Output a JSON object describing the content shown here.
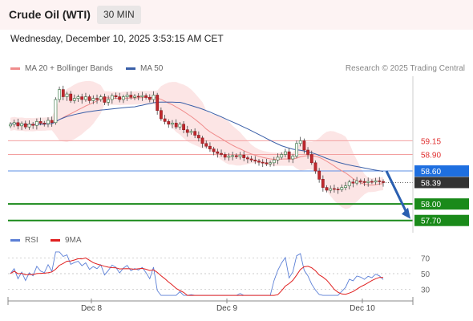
{
  "header": {
    "title": "Crude Oil (WTI)",
    "timeframe": "30 MIN",
    "datetime": "Wednesday, December 10, 2025 3:53:15 AM CET"
  },
  "legend": {
    "bollinger": {
      "label": "MA 20 + Bollinger Bands",
      "color": "#f08c8c"
    },
    "ma50": {
      "label": "MA 50",
      "color": "#3a5fa8"
    },
    "credit": "Research © 2025 Trading Central"
  },
  "rsi_legend": {
    "rsi": {
      "label": "RSI",
      "color": "#5b7fd6"
    },
    "ma9": {
      "label": "9MA",
      "color": "#e02020"
    }
  },
  "chart_data": [
    {
      "type": "candlestick",
      "title": "Crude Oil (WTI)",
      "timeframe": "30 MIN",
      "x_ticks": [
        "Dec 8",
        "Dec 9",
        "Dec 10"
      ],
      "ylim": [
        57.55,
        60.25
      ],
      "closes": [
        59.45,
        59.48,
        59.42,
        59.46,
        59.4,
        59.45,
        59.43,
        59.5,
        59.47,
        59.46,
        59.52,
        59.48,
        59.9,
        60.08,
        59.95,
        60.0,
        59.88,
        59.92,
        59.95,
        59.9,
        59.95,
        59.88,
        59.92,
        59.9,
        59.95,
        59.85,
        59.9,
        59.97,
        59.95,
        59.9,
        59.95,
        59.98,
        59.94,
        59.96,
        59.95,
        59.97,
        59.94,
        59.9,
        59.98,
        59.7,
        59.55,
        59.5,
        59.45,
        59.47,
        59.4,
        59.45,
        59.35,
        59.3,
        59.32,
        59.25,
        59.2,
        59.1,
        59.05,
        59.0,
        58.95,
        58.92,
        58.9,
        58.85,
        58.87,
        58.88,
        58.86,
        58.89,
        58.84,
        58.82,
        58.8,
        58.78,
        58.76,
        58.75,
        58.73,
        58.75,
        58.8,
        58.85,
        58.9,
        58.95,
        58.82,
        58.87,
        59.1,
        59.15,
        58.98,
        58.9,
        58.75,
        58.6,
        58.45,
        58.3,
        58.25,
        58.28,
        58.27,
        58.26,
        58.3,
        58.33,
        58.4,
        58.38,
        58.42,
        58.41,
        58.39,
        58.41,
        58.4,
        58.42,
        58.41,
        58.39
      ],
      "moving_averages": [
        {
          "name": "MA 20",
          "color": "#f08c8c"
        },
        {
          "name": "MA 50",
          "color": "#3a5fa8"
        }
      ],
      "levels": [
        {
          "value": "59.15",
          "kind": "resistance",
          "color": "#e03030"
        },
        {
          "value": "58.90",
          "kind": "resistance",
          "color": "#e03030"
        },
        {
          "value": "58.60",
          "kind": "pivot",
          "color": "#1e6fe0"
        },
        {
          "value": "58.39",
          "kind": "last",
          "color": "#333333"
        },
        {
          "value": "58.00",
          "kind": "support",
          "color": "#1a8a1a"
        },
        {
          "value": "57.70",
          "kind": "support",
          "color": "#1a8a1a"
        }
      ],
      "projection": {
        "from": 58.6,
        "to": 57.7
      }
    },
    {
      "type": "line",
      "title": "RSI",
      "y_ticks": [
        "70",
        "50",
        "30"
      ],
      "ylim": [
        20,
        80
      ],
      "series": [
        {
          "name": "RSI",
          "color": "#5b7fd6"
        },
        {
          "name": "9MA",
          "color": "#e02020"
        }
      ]
    }
  ]
}
